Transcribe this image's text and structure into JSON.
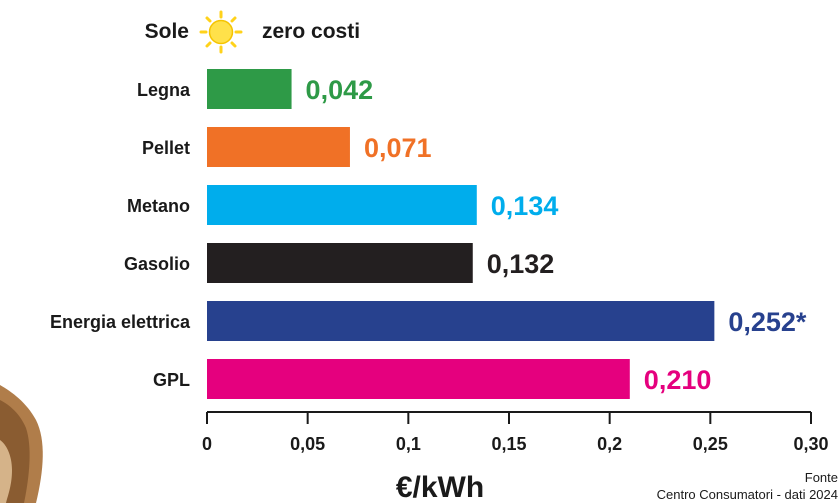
{
  "chart_data": {
    "type": "bar",
    "orientation": "horizontal",
    "title_row": {
      "label": "Sole",
      "note": "zero costi",
      "icon": "sun-icon"
    },
    "categories": [
      "Legna",
      "Pellet",
      "Metano",
      "Gasolio",
      "Energia elettrica",
      "GPL"
    ],
    "values": [
      0.042,
      0.071,
      0.134,
      0.132,
      0.252,
      0.21
    ],
    "value_labels": [
      "0,042",
      "0,071",
      "0,134",
      "0,132",
      "0,252*",
      "0,210"
    ],
    "colors": [
      "#2e9a47",
      "#f07126",
      "#00adec",
      "#231f20",
      "#27418e",
      "#e5007e"
    ],
    "x_ticks": [
      0,
      0.05,
      0.1,
      0.15,
      0.2,
      0.25,
      0.3
    ],
    "x_tick_labels": [
      "0",
      "0,05",
      "0,1",
      "0,15",
      "0,2",
      "0,25",
      "0,30"
    ],
    "xlim": [
      0,
      0.3
    ],
    "xlabel": "€/kWh",
    "source": {
      "line1": "Fonte",
      "line2": "Centro Consumatori - dati 2024"
    },
    "grid": false
  }
}
